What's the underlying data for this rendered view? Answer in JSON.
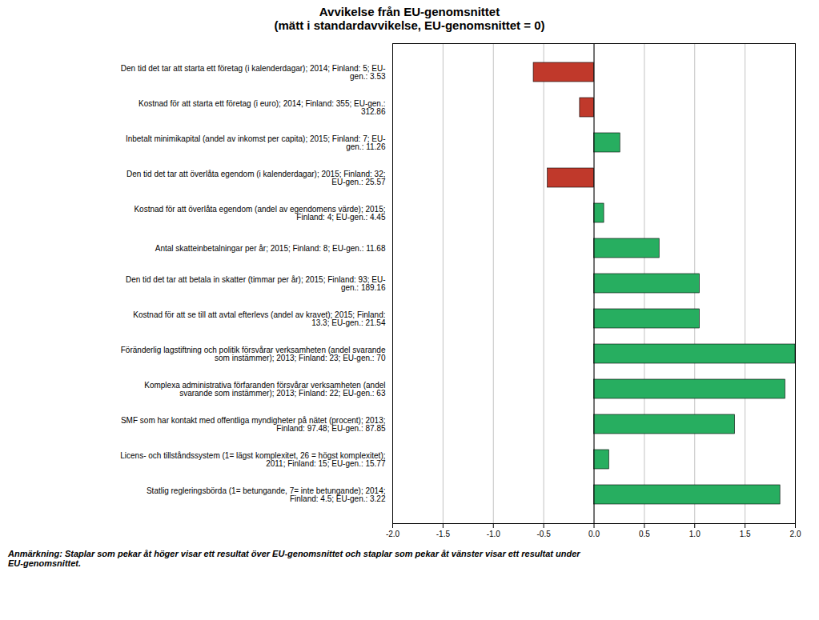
{
  "chart_data": {
    "type": "bar",
    "orientation": "horizontal",
    "title": "Avvikelse från EU-genomsnittet",
    "subtitle": "(mätt i standardavvikelse, EU-genomsnittet = 0)",
    "categories": [
      "Den tid det tar att starta ett företag (i kalenderdagar); 2014; Finland: 5; EU-\ngen.: 3.53",
      "Kostnad för att starta ett företag (i euro); 2014; Finland: 355; EU-gen.:\n312.86",
      "Inbetalt minimikapital (andel av inkomst per capita); 2015; Finland: 7; EU-\ngen.: 11.26",
      "Den tid det tar att överlåta egendom (i kalenderdagar); 2015; Finland: 32;\nEU-gen.: 25.57",
      "Kostnad för att överlåta egendom (andel av egendomens värde); 2015;\nFinland: 4; EU-gen.: 4.45",
      "Antal skatteinbetalningar per år; 2015; Finland: 8; EU-gen.: 11.68",
      "Den tid det tar att betala in skatter (timmar per år); 2015; Finland: 93; EU-\ngen.: 189.16",
      "Kostnad för att se till att avtal efterlevs (andel av kravet); 2015; Finland:\n13.3; EU-gen.: 21.54",
      "Föränderlig lagstiftning och politik försvårar verksamheten (andel svarande\nsom instämmer); 2013; Finland: 23; EU-gen.: 70",
      "Komplexa administrativa förfaranden försvårar verksamheten (andel\nsvarande som instämmer); 2013; Finland: 22; EU-gen.: 63",
      "SMF som har kontakt med offentliga myndigheter på nätet (procent); 2013;\nFinland: 97.48; EU-gen.: 87.85",
      "Licens- och tillståndssystem (1= lägst komplexitet, 26 = högst komplexitet);\n2011; Finland: 15; EU-gen.: 15.77",
      "Statlig regleringsbörda (1= betungande, 7= inte betungande); 2014;\nFinland: 4.5; EU-gen.: 3.22"
    ],
    "values": [
      -0.6,
      -0.14,
      0.26,
      -0.46,
      0.1,
      0.65,
      1.05,
      1.05,
      2.0,
      1.9,
      1.4,
      0.15,
      1.85
    ],
    "colors": [
      "#c0392b",
      "#c0392b",
      "#27ae60",
      "#c0392b",
      "#27ae60",
      "#27ae60",
      "#27ae60",
      "#27ae60",
      "#27ae60",
      "#27ae60",
      "#27ae60",
      "#27ae60",
      "#27ae60"
    ],
    "xlim": [
      -2.0,
      2.0
    ],
    "xticks": [
      {
        "value": -2.0,
        "label": "-2.0"
      },
      -1.5,
      {
        "value": -1.0,
        "label": "-1.0"
      },
      -0.5,
      {
        "value": 0.0,
        "label": "0.0"
      },
      0.5,
      {
        "value": 1.0,
        "label": "1.0"
      },
      1.5,
      {
        "value": 2.0,
        "label": "2.0"
      }
    ],
    "grid": true,
    "caption": "Anmärkning: Staplar som pekar åt höger visar ett resultat över EU-genomsnittet och staplar som pekar åt vänster visar ett resultat under\nEU-genomsnittet."
  }
}
